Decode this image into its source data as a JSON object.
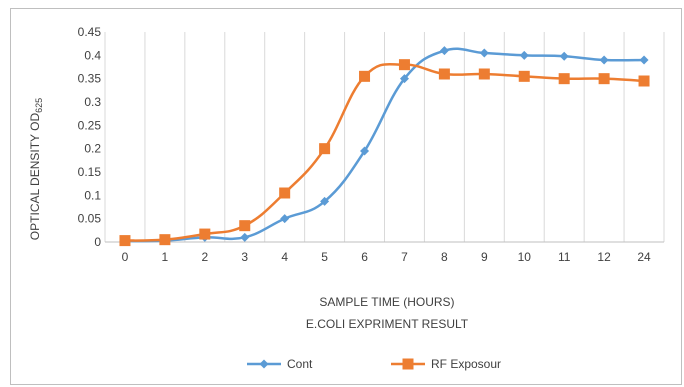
{
  "chart_data": {
    "type": "line",
    "title": "",
    "categories": [
      "0",
      "1",
      "2",
      "3",
      "4",
      "5",
      "6",
      "7",
      "8",
      "9",
      "10",
      "11",
      "12",
      "24"
    ],
    "xlabel": "SAMPLE TIME (HOURS)",
    "xlabel_line2": "E.COLI EXPRIMENT RESULT",
    "ylabel_main": "OPTICAL DENSITY OD",
    "ylabel_sub": "625",
    "ylim": [
      0,
      0.45
    ],
    "yticks": [
      "0",
      "0.05",
      "0.1",
      "0.15",
      "0.2",
      "0.25",
      "0.3",
      "0.35",
      "0.4",
      "0.45"
    ],
    "grid": "vertical",
    "legend_position": "bottom",
    "series": [
      {
        "name": "Cont",
        "color": "#5b9bd5",
        "marker": "diamond",
        "values": [
          0.002,
          0.003,
          0.01,
          0.01,
          0.05,
          0.087,
          0.195,
          0.35,
          0.41,
          0.405,
          0.4,
          0.398,
          0.39,
          0.39
        ]
      },
      {
        "name": "RF Exposour",
        "color": "#ed7d31",
        "marker": "square",
        "values": [
          0.003,
          0.005,
          0.017,
          0.035,
          0.105,
          0.2,
          0.355,
          0.38,
          0.36,
          0.36,
          0.355,
          0.35,
          0.35,
          0.345
        ]
      }
    ]
  }
}
